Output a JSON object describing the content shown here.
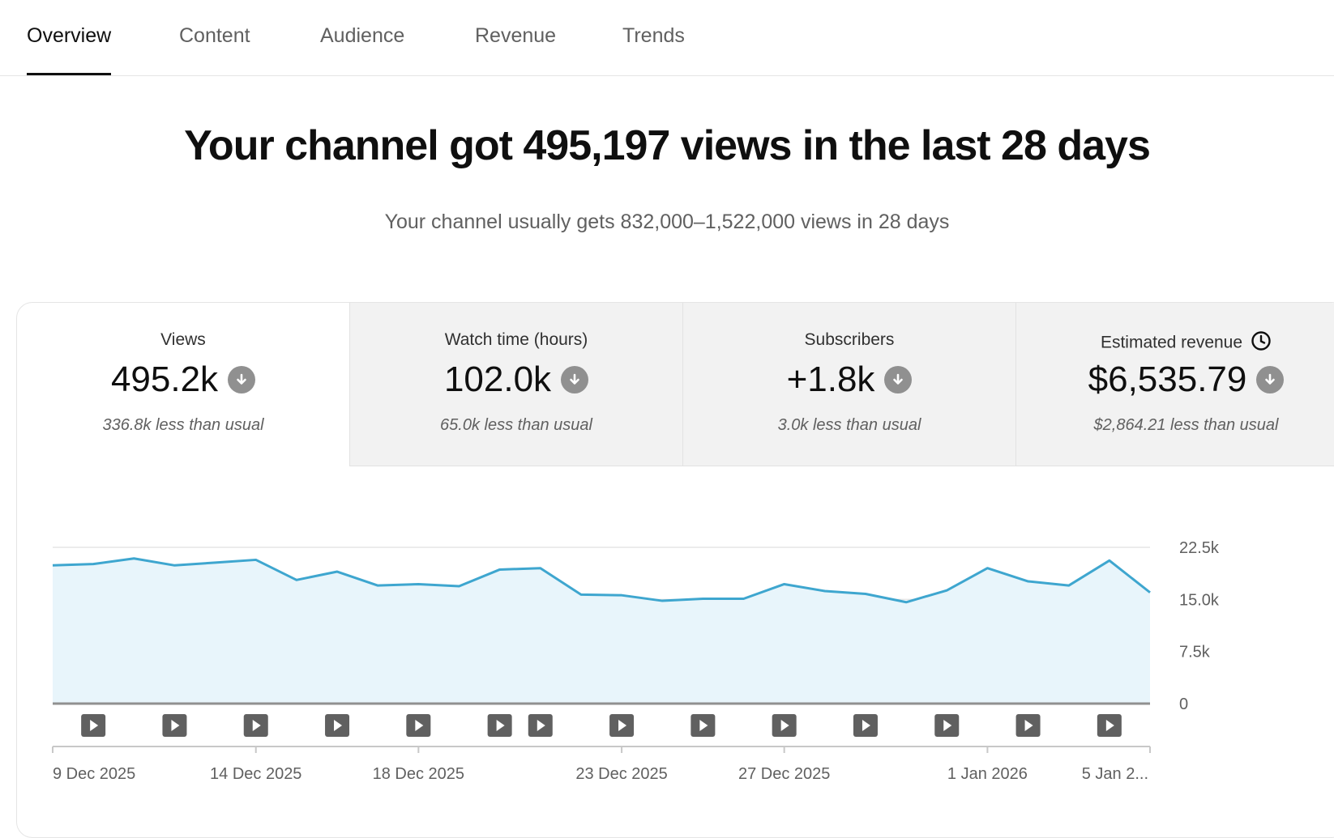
{
  "tabs": [
    {
      "label": "Overview",
      "active": true
    },
    {
      "label": "Content",
      "active": false
    },
    {
      "label": "Audience",
      "active": false
    },
    {
      "label": "Revenue",
      "active": false
    },
    {
      "label": "Trends",
      "active": false
    }
  ],
  "headline": "Your channel got 495,197 views in the last 28 days",
  "subline": "Your channel usually gets 832,000–1,522,000 views in 28 days",
  "metrics": [
    {
      "label": "Views",
      "value": "495.2k",
      "note": "336.8k less than usual",
      "trend_icon": "arrow-down-circle-icon"
    },
    {
      "label": "Watch time (hours)",
      "value": "102.0k",
      "note": "65.0k less than usual",
      "trend_icon": "arrow-down-circle-icon"
    },
    {
      "label": "Subscribers",
      "value": "+1.8k",
      "note": "3.0k less than usual",
      "trend_icon": "arrow-down-circle-icon"
    },
    {
      "label": "Estimated revenue",
      "value": "$6,535.79",
      "note": "$2,864.21 less than usual",
      "trend_icon": "arrow-down-circle-icon",
      "extra_icon": "clock-icon"
    }
  ],
  "colors": {
    "line": "#3ea6cf",
    "area": "#e8f5fb",
    "active_tab": "#0f0f0f",
    "muted_text": "#606060",
    "inactive_card": "#f2f2f2"
  },
  "chart_data": {
    "type": "area",
    "x": [
      "9 Dec 2025",
      "10 Dec 2025",
      "11 Dec 2025",
      "12 Dec 2025",
      "13 Dec 2025",
      "14 Dec 2025",
      "15 Dec 2025",
      "16 Dec 2025",
      "17 Dec 2025",
      "18 Dec 2025",
      "19 Dec 2025",
      "20 Dec 2025",
      "21 Dec 2025",
      "22 Dec 2025",
      "23 Dec 2025",
      "24 Dec 2025",
      "25 Dec 2025",
      "26 Dec 2025",
      "27 Dec 2025",
      "28 Dec 2025",
      "29 Dec 2025",
      "30 Dec 2025",
      "31 Dec 2025",
      "1 Jan 2026",
      "2 Jan 2026",
      "3 Jan 2026",
      "4 Jan 2026",
      "5 Jan 2026"
    ],
    "series": [
      {
        "values": [
          19900,
          20100,
          20900,
          19900,
          20300,
          20700,
          17800,
          19000,
          17000,
          17200,
          16900,
          19300,
          19500,
          15700,
          15600,
          14800,
          15100,
          15100,
          17200,
          16200,
          15800,
          14600,
          16300,
          19500,
          17600,
          17000,
          20600,
          16000
        ]
      }
    ],
    "ylim": [
      0,
      22500
    ],
    "yticks": [
      "0",
      "7.5k",
      "15.0k",
      "22.5k"
    ],
    "ytick_values": [
      0,
      7500,
      15000,
      22500
    ],
    "xtick_labels": [
      "9 Dec 2025",
      "14 Dec 2025",
      "18 Dec 2025",
      "23 Dec 2025",
      "27 Dec 2025",
      "1 Jan 2026",
      "5 Jan 2..."
    ],
    "xtick_indices": [
      0,
      5,
      9,
      14,
      18,
      23,
      27
    ],
    "video_markers": [
      1,
      3,
      5,
      7,
      9,
      11,
      12,
      14,
      16,
      18,
      20,
      22,
      24,
      26
    ],
    "grid": true,
    "yaxis_side": "right"
  }
}
